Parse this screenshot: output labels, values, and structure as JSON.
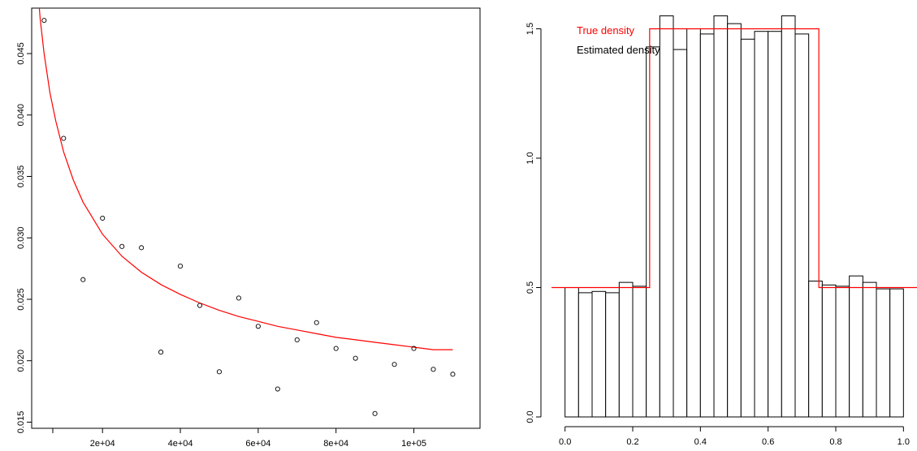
{
  "chart_data": [
    {
      "type": "scatter",
      "title": "",
      "xlabel": "",
      "ylabel": "",
      "xlim": [
        1800,
        117000
      ],
      "ylim": [
        0.0145,
        0.0487
      ],
      "x_ticks": [
        {
          "value": 20000,
          "label": "2e+04"
        },
        {
          "value": 40000,
          "label": "4e+04"
        },
        {
          "value": 60000,
          "label": "6e+04"
        },
        {
          "value": 80000,
          "label": "8e+04"
        },
        {
          "value": 100000,
          "label": "1e+05"
        }
      ],
      "y_ticks": [
        {
          "value": 0.015,
          "label": "0.015"
        },
        {
          "value": 0.02,
          "label": "0.020"
        },
        {
          "value": 0.025,
          "label": "0.025"
        },
        {
          "value": 0.03,
          "label": "0.030"
        },
        {
          "value": 0.035,
          "label": "0.035"
        },
        {
          "value": 0.04,
          "label": "0.040"
        },
        {
          "value": 0.045,
          "label": "0.045"
        }
      ],
      "points": {
        "x": [
          5000,
          10000,
          15000,
          20000,
          25000,
          30000,
          35000,
          40000,
          45000,
          50000,
          55000,
          60000,
          65000,
          70000,
          75000,
          80000,
          85000,
          90000,
          95000,
          100000,
          105000,
          110000
        ],
        "y": [
          0.0477,
          0.0381,
          0.0266,
          0.0316,
          0.0293,
          0.0292,
          0.0207,
          0.0277,
          0.0245,
          0.0191,
          0.0251,
          0.0228,
          0.0177,
          0.0217,
          0.0231,
          0.021,
          0.0202,
          0.0157,
          0.0197,
          0.021,
          0.0193,
          0.0189
        ]
      },
      "curve": {
        "color": "#ff0000",
        "x": [
          3200,
          4000,
          5000,
          6500,
          8000,
          10000,
          12500,
          15000,
          20000,
          25000,
          30000,
          35000,
          40000,
          45000,
          50000,
          55000,
          60000,
          65000,
          70000,
          75000,
          80000,
          85000,
          90000,
          95000,
          100000,
          105000,
          110000
        ],
        "y": [
          0.051,
          0.0478,
          0.045,
          0.0418,
          0.0395,
          0.037,
          0.0347,
          0.0329,
          0.0303,
          0.0285,
          0.0272,
          0.0262,
          0.0254,
          0.0247,
          0.0241,
          0.0236,
          0.0232,
          0.0228,
          0.0225,
          0.0222,
          0.0219,
          0.0217,
          0.0215,
          0.0213,
          0.0211,
          0.0209,
          0.0209
        ]
      },
      "grid": false,
      "legend": null
    },
    {
      "type": "bar",
      "title": "",
      "xlabel": "",
      "ylabel": "",
      "xlim": [
        -0.04,
        1.04
      ],
      "ylim": [
        0,
        1.58
      ],
      "x_ticks": [
        {
          "value": 0.0,
          "label": "0.0"
        },
        {
          "value": 0.2,
          "label": "0.2"
        },
        {
          "value": 0.4,
          "label": "0.4"
        },
        {
          "value": 0.6,
          "label": "0.6"
        },
        {
          "value": 0.8,
          "label": "0.8"
        },
        {
          "value": 1.0,
          "label": "1.0"
        }
      ],
      "y_ticks": [
        {
          "value": 0.0,
          "label": "0.0"
        },
        {
          "value": 0.5,
          "label": "0.5"
        },
        {
          "value": 1.0,
          "label": "1.0"
        },
        {
          "value": 1.5,
          "label": "1.5"
        }
      ],
      "bin_width": 0.04,
      "bin_starts": [
        0.0,
        0.04,
        0.08,
        0.12,
        0.16,
        0.2,
        0.24,
        0.28,
        0.32,
        0.36,
        0.4,
        0.44,
        0.48,
        0.52,
        0.56,
        0.6,
        0.64,
        0.68,
        0.72,
        0.76,
        0.8,
        0.84,
        0.88,
        0.92,
        0.96
      ],
      "values": [
        0.5,
        0.48,
        0.485,
        0.48,
        0.52,
        0.505,
        1.43,
        1.55,
        1.42,
        1.5,
        1.48,
        1.55,
        1.52,
        1.46,
        1.49,
        1.49,
        1.55,
        1.48,
        0.525,
        0.51,
        0.505,
        0.545,
        0.52,
        0.495,
        0.495
      ],
      "true_density": {
        "color": "#ff0000",
        "segments": [
          {
            "x0": -0.04,
            "x1": 0.25,
            "y": 0.5
          },
          {
            "x0": 0.25,
            "x1": 0.75,
            "y": 1.5
          },
          {
            "x0": 0.75,
            "x1": 1.04,
            "y": 0.5
          }
        ]
      },
      "legend": {
        "position": "top-left",
        "entries": [
          {
            "label": "True density",
            "color": "#ff0000"
          },
          {
            "label": "Estimated density",
            "color": "#000000"
          }
        ]
      },
      "grid": false
    }
  ]
}
